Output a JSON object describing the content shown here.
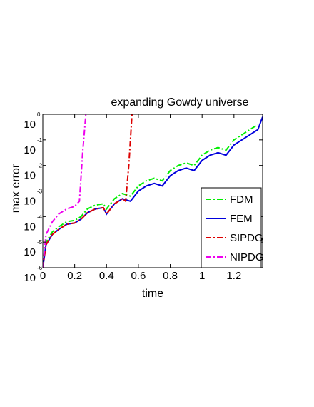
{
  "chart_data": {
    "type": "line",
    "title": "expanding Gowdy universe",
    "xlabel": "time",
    "ylabel": "max error",
    "xlim": [
      0,
      1.38
    ],
    "ylim_log10": [
      -6,
      0
    ],
    "y_scale": "log",
    "grid": false,
    "legend_position": "bottom-right",
    "x_ticks": [
      "0",
      "0.2",
      "0.4",
      "0.6",
      "0.8",
      "1",
      "1.2"
    ],
    "y_ticks": [
      {
        "base": "10",
        "exp": "-6"
      },
      {
        "base": "10",
        "exp": "-5"
      },
      {
        "base": "10",
        "exp": "-4"
      },
      {
        "base": "10",
        "exp": "-3"
      },
      {
        "base": "10",
        "exp": "-2"
      },
      {
        "base": "10",
        "exp": "-1"
      },
      {
        "base": "10",
        "exp": "0"
      }
    ],
    "series": [
      {
        "name": "FDM",
        "color": "#00ee00",
        "dash": "dash-dot",
        "x": [
          0.0,
          0.02,
          0.06,
          0.1,
          0.15,
          0.2,
          0.24,
          0.28,
          0.33,
          0.38,
          0.4,
          0.45,
          0.5,
          0.55,
          0.6,
          0.65,
          0.7,
          0.75,
          0.8,
          0.85,
          0.9,
          0.95,
          1.0,
          1.05,
          1.1,
          1.15,
          1.2,
          1.25,
          1.3,
          1.35
        ],
        "y": [
          -6.0,
          -5.0,
          -4.6,
          -4.4,
          -4.2,
          -4.15,
          -4.0,
          -3.7,
          -3.55,
          -3.5,
          -3.7,
          -3.3,
          -3.1,
          -3.2,
          -2.8,
          -2.6,
          -2.5,
          -2.6,
          -2.2,
          -2.0,
          -1.9,
          -2.0,
          -1.6,
          -1.4,
          -1.3,
          -1.4,
          -1.0,
          -0.8,
          -0.6,
          -0.4
        ]
      },
      {
        "name": "FEM",
        "color": "#0000dd",
        "dash": "solid",
        "x": [
          0.0,
          0.02,
          0.06,
          0.1,
          0.15,
          0.2,
          0.24,
          0.28,
          0.33,
          0.38,
          0.4,
          0.45,
          0.5,
          0.55,
          0.6,
          0.65,
          0.7,
          0.75,
          0.8,
          0.85,
          0.9,
          0.95,
          1.0,
          1.05,
          1.1,
          1.15,
          1.2,
          1.25,
          1.3,
          1.35,
          1.38
        ],
        "y": [
          -6.0,
          -5.1,
          -4.7,
          -4.5,
          -4.3,
          -4.25,
          -4.1,
          -3.85,
          -3.7,
          -3.65,
          -3.9,
          -3.5,
          -3.3,
          -3.4,
          -3.0,
          -2.8,
          -2.7,
          -2.8,
          -2.4,
          -2.2,
          -2.1,
          -2.2,
          -1.8,
          -1.6,
          -1.5,
          -1.6,
          -1.2,
          -1.0,
          -0.8,
          -0.6,
          -0.1
        ]
      },
      {
        "name": "SIPDG",
        "color": "#dd0000",
        "dash": "dash-dot",
        "x": [
          0.0,
          0.02,
          0.06,
          0.1,
          0.15,
          0.2,
          0.24,
          0.28,
          0.33,
          0.38,
          0.4,
          0.45,
          0.5,
          0.52,
          0.54,
          0.56
        ],
        "y": [
          -6.0,
          -5.1,
          -4.7,
          -4.5,
          -4.3,
          -4.25,
          -4.1,
          -3.85,
          -3.7,
          -3.65,
          -3.9,
          -3.5,
          -3.3,
          -3.4,
          -2.0,
          0.0
        ]
      },
      {
        "name": "NIPDG",
        "color": "#ee00ee",
        "dash": "dash-dot",
        "x": [
          0.0,
          0.02,
          0.06,
          0.1,
          0.15,
          0.2,
          0.23,
          0.25,
          0.27
        ],
        "y": [
          -6.0,
          -4.7,
          -4.2,
          -3.9,
          -3.7,
          -3.6,
          -3.4,
          -1.5,
          0.0
        ]
      }
    ]
  }
}
